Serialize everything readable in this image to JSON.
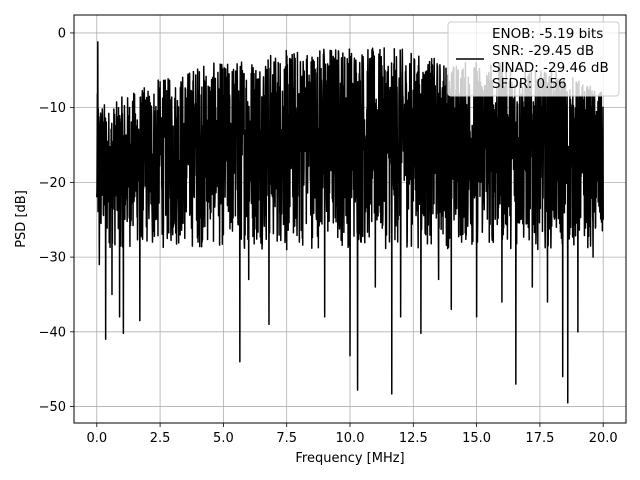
{
  "chart_data": {
    "type": "line",
    "title": "",
    "xlabel": "Frequency [MHz]",
    "ylabel": "PSD [dB]",
    "xlim": [
      -0.9,
      20.9
    ],
    "ylim": [
      -52.2,
      2.4
    ],
    "xticks": [
      0.0,
      2.5,
      5.0,
      7.5,
      10.0,
      12.5,
      15.0,
      17.5,
      20.0
    ],
    "xtick_labels": [
      "0.0",
      "2.5",
      "5.0",
      "7.5",
      "10.0",
      "12.5",
      "15.0",
      "17.5",
      "20.0"
    ],
    "yticks": [
      0,
      -10,
      -20,
      -30,
      -40,
      -50
    ],
    "ytick_labels": [
      "0",
      "−10",
      "−20",
      "−30",
      "−40",
      "−50"
    ],
    "grid": true,
    "legend_position": "top-right",
    "legend_lines": [
      "ENOB: -5.19 bits",
      "SNR: -29.45 dB",
      "SINAD: -29.46 dB",
      "SFDR: 0.56"
    ],
    "series": [
      {
        "color": "#000000",
        "x_range": [
          0.0,
          20.0
        ],
        "description_points": [
          [
            0.0,
            -22
          ],
          [
            0.04,
            -1.2
          ],
          [
            0.1,
            -31
          ],
          [
            0.35,
            -41
          ],
          [
            0.6,
            -35
          ],
          [
            0.9,
            -38
          ],
          [
            1.05,
            -40.2
          ],
          [
            1.7,
            -38.5
          ],
          [
            2.2,
            -28
          ],
          [
            3.0,
            -27
          ],
          [
            4.0,
            -28
          ],
          [
            5.0,
            -27
          ],
          [
            5.65,
            -44
          ],
          [
            6.0,
            -33
          ],
          [
            6.8,
            -39
          ],
          [
            7.5,
            -29
          ],
          [
            8.0,
            -28
          ],
          [
            9.0,
            -38
          ],
          [
            10.0,
            -43.2
          ],
          [
            10.3,
            -47.8
          ],
          [
            11.0,
            -34
          ],
          [
            11.65,
            -48.3
          ],
          [
            12.0,
            -38
          ],
          [
            12.8,
            -40.2
          ],
          [
            13.5,
            -33
          ],
          [
            14.0,
            -37
          ],
          [
            15.0,
            -38
          ],
          [
            16.0,
            -36
          ],
          [
            16.55,
            -47
          ],
          [
            17.2,
            -34
          ],
          [
            17.8,
            -36
          ],
          [
            18.4,
            -46
          ],
          [
            18.6,
            -49.5
          ],
          [
            19.0,
            -40
          ],
          [
            19.6,
            -30
          ],
          [
            20.0,
            -25
          ]
        ],
        "upper_envelope": [
          [
            0.0,
            -8
          ],
          [
            0.5,
            -10
          ],
          [
            1.0,
            -8.5
          ],
          [
            2.0,
            -7
          ],
          [
            2.5,
            -6
          ],
          [
            3.0,
            -6
          ],
          [
            4.0,
            -4
          ],
          [
            5.0,
            -4
          ],
          [
            6.0,
            -3
          ],
          [
            7.0,
            -2.5
          ],
          [
            8.0,
            -2
          ],
          [
            9.0,
            -1.5
          ],
          [
            10.0,
            -1.5
          ],
          [
            11.0,
            -2
          ],
          [
            12.0,
            -2
          ],
          [
            13.0,
            -3
          ],
          [
            14.0,
            -4
          ],
          [
            15.0,
            -3.5
          ],
          [
            16.0,
            -4
          ],
          [
            17.0,
            -5
          ],
          [
            18.0,
            -5
          ],
          [
            19.0,
            -6
          ],
          [
            20.0,
            -8
          ]
        ],
        "dense_band": [
          -29,
          -6
        ]
      }
    ]
  }
}
